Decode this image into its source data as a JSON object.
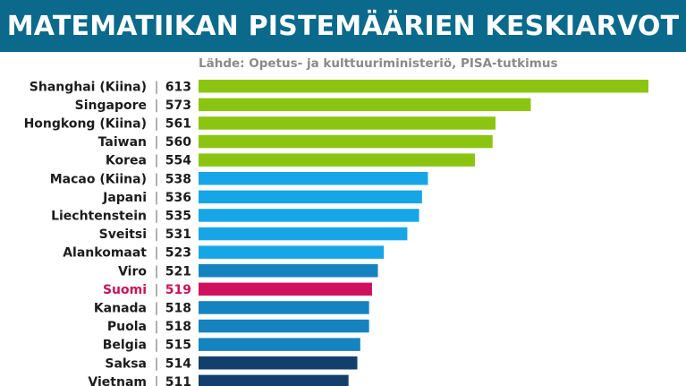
{
  "header": {
    "title": "MATEMATIIKAN PISTEMÄÄRIEN KESKIARVOT"
  },
  "source": "Lähde: Opetus- ja kulttuuriministeriö, PISA-tutkimus",
  "colors": {
    "header_bg": "#0b6a8b",
    "highlight_text": "#c8125a",
    "label_text": "#1c1c1c"
  },
  "chart_data": {
    "type": "bar",
    "orientation": "horizontal",
    "title": "MATEMATIIKAN PISTEMÄÄRIEN KESKIARVOT",
    "categories": [
      "Shanghai (Kiina)",
      "Singapore",
      "Hongkong (Kiina)",
      "Taiwan",
      "Korea",
      "Macao (Kiina)",
      "Japani",
      "Liechtenstein",
      "Sveitsi",
      "Alankomaat",
      "Viro",
      "Suomi",
      "Kanada",
      "Puola",
      "Belgia",
      "Saksa",
      "Vietnam"
    ],
    "values": [
      613,
      573,
      561,
      560,
      554,
      538,
      536,
      535,
      531,
      523,
      521,
      519,
      518,
      518,
      515,
      514,
      511
    ],
    "bar_colors": [
      "#8cc511",
      "#8cc511",
      "#8cc511",
      "#8cc511",
      "#8cc511",
      "#16a6e8",
      "#16a6e8",
      "#16a6e8",
      "#16a6e8",
      "#16a6e8",
      "#1683c1",
      "#d0125e",
      "#1683c1",
      "#1683c1",
      "#1683c1",
      "#123f6c",
      "#123f6c"
    ],
    "highlight": "Suomi",
    "xlim": [
      0,
      613
    ],
    "grid": false,
    "legend": "none"
  }
}
